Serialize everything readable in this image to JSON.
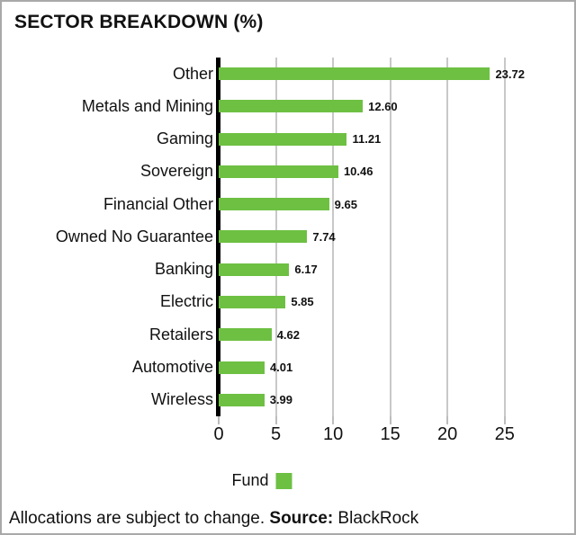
{
  "chart_data": {
    "type": "bar",
    "orientation": "horizontal",
    "title": "SECTOR BREAKDOWN (%)",
    "categories": [
      "Other",
      "Metals and Mining",
      "Gaming",
      "Sovereign",
      "Financial Other",
      "Owned No Guarantee",
      "Banking",
      "Electric",
      "Retailers",
      "Automotive",
      "Wireless"
    ],
    "values": [
      23.72,
      12.6,
      11.21,
      10.46,
      9.65,
      7.74,
      6.17,
      5.85,
      4.62,
      4.01,
      3.99
    ],
    "value_labels": [
      "23.72",
      "12.60",
      "11.21",
      "10.46",
      "9.65",
      "7.74",
      "6.17",
      "5.85",
      "4.62",
      "4.01",
      "3.99"
    ],
    "x_ticks": [
      0,
      5,
      10,
      15,
      20,
      25
    ],
    "xlim": [
      0,
      30.45
    ],
    "xlabel": "",
    "ylabel": "",
    "grid": "vertical",
    "legend_position": "bottom-center",
    "legend": [
      {
        "label": "Fund",
        "color": "#6ec043"
      }
    ],
    "bar_color": "#6ec043",
    "gridline_color": "#c8c8c8",
    "axis_color": "#000000"
  },
  "footer": {
    "text": "Allocations are subject to change. ",
    "source_label": "Source:",
    "source_value": " BlackRock"
  }
}
